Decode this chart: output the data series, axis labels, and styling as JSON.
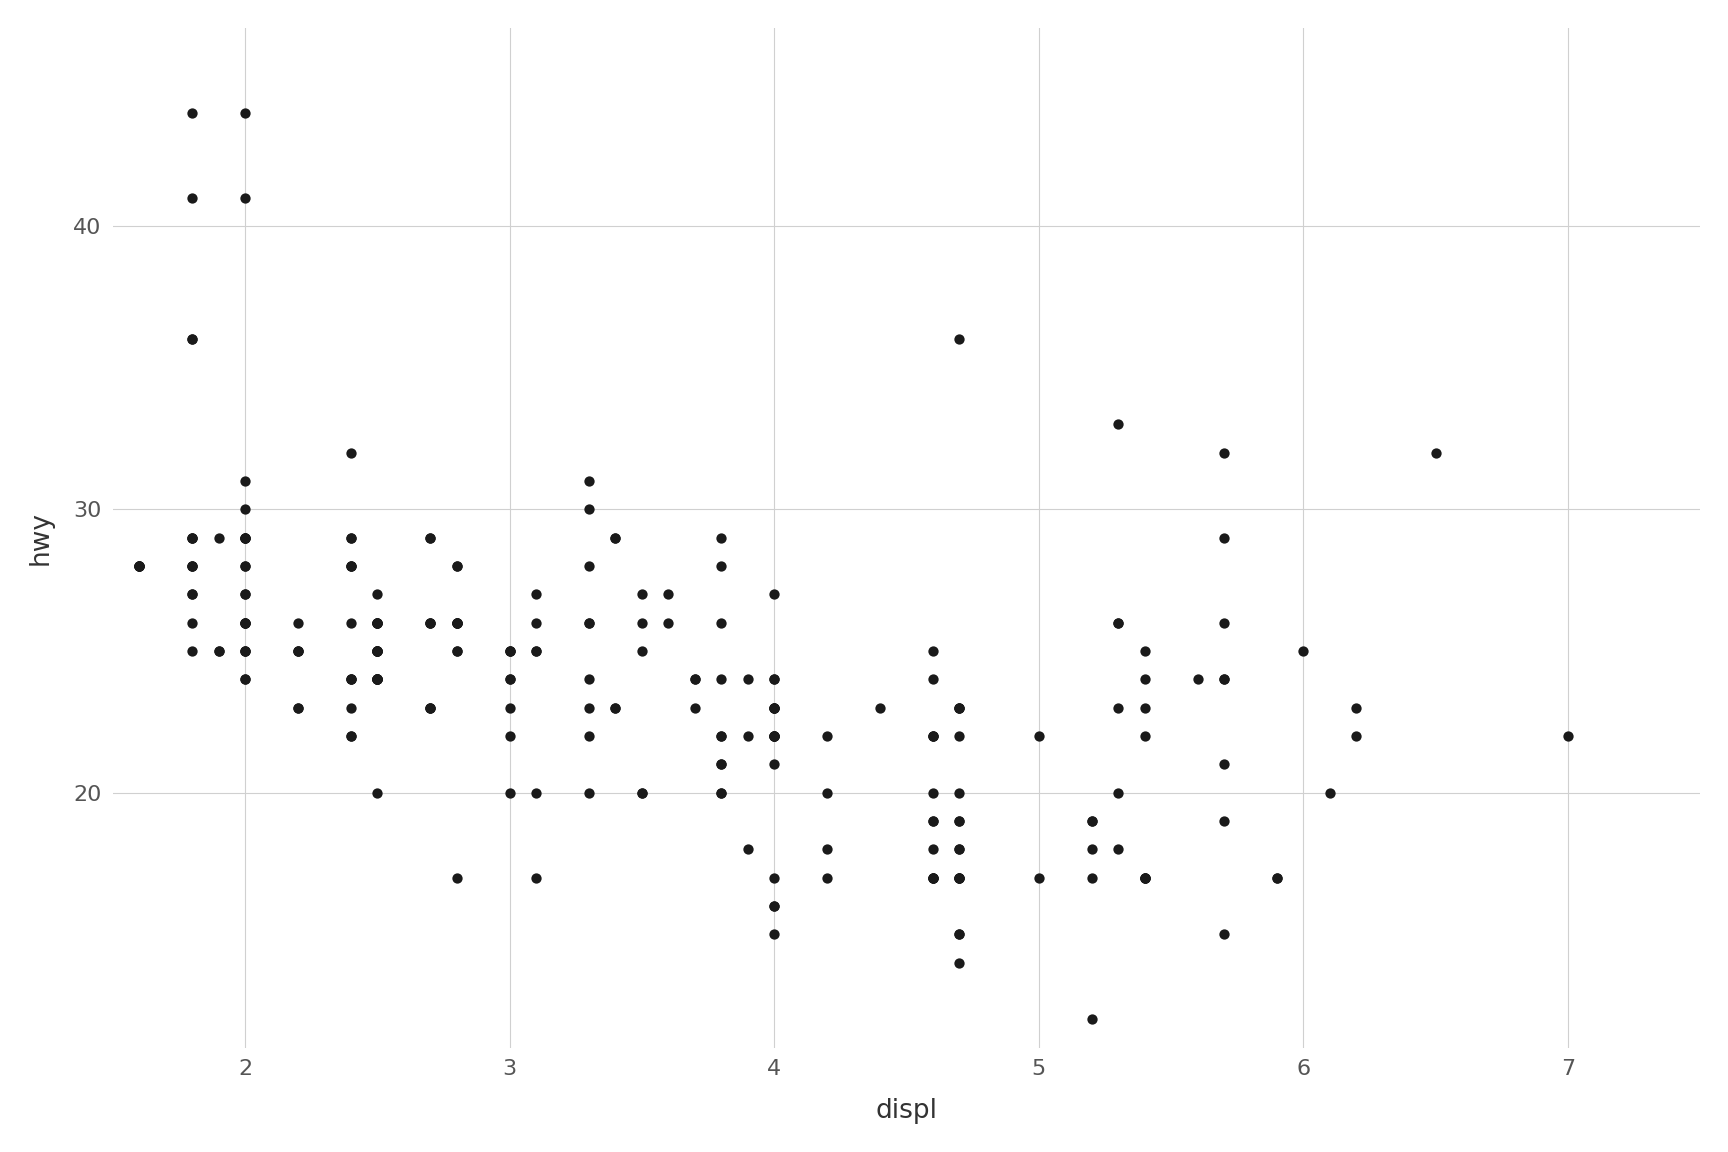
{
  "displ": [
    1.8,
    1.8,
    2.0,
    2.0,
    2.8,
    2.8,
    3.1,
    1.8,
    1.8,
    2.0,
    2.0,
    2.8,
    2.8,
    3.1,
    3.1,
    2.8,
    3.1,
    4.2,
    5.3,
    5.3,
    5.3,
    5.7,
    6.0,
    5.7,
    5.7,
    6.2,
    6.2,
    7.0,
    5.3,
    5.3,
    5.7,
    6.5,
    2.4,
    2.4,
    3.1,
    3.5,
    3.6,
    2.4,
    3.0,
    3.3,
    3.3,
    3.3,
    3.3,
    3.3,
    3.8,
    3.8,
    3.8,
    4.0,
    3.7,
    3.7,
    3.9,
    3.9,
    4.7,
    4.7,
    4.7,
    5.2,
    5.2,
    3.9,
    4.7,
    4.7,
    4.7,
    5.2,
    5.7,
    5.9,
    4.7,
    4.7,
    4.7,
    4.7,
    4.7,
    4.7,
    5.2,
    5.2,
    5.7,
    5.9,
    4.6,
    5.4,
    5.4,
    4.0,
    4.0,
    4.0,
    4.0,
    4.6,
    5.0,
    4.2,
    4.2,
    4.6,
    4.6,
    4.6,
    5.4,
    5.4,
    3.8,
    3.8,
    4.0,
    4.0,
    4.6,
    4.6,
    3.8,
    3.8,
    4.0,
    4.0,
    4.6,
    4.6,
    4.6,
    4.6,
    5.4,
    1.6,
    1.6,
    1.6,
    1.6,
    1.6,
    1.8,
    1.8,
    1.8,
    2.0,
    2.4,
    2.4,
    2.4,
    2.4,
    2.5,
    2.5,
    3.3,
    2.0,
    2.0,
    2.0,
    2.0,
    2.7,
    2.7,
    2.7,
    3.0,
    3.7,
    4.0,
    4.7,
    4.7,
    4.7,
    5.7,
    6.1,
    4.0,
    4.2,
    4.4,
    4.6,
    5.4,
    5.4,
    5.4,
    4.0,
    4.0,
    4.6,
    5.0,
    2.4,
    2.4,
    2.5,
    2.5,
    3.5,
    3.5,
    3.0,
    3.0,
    3.5,
    3.3,
    3.3,
    4.0,
    5.6,
    3.1,
    3.8,
    3.8,
    3.8,
    5.3,
    2.5,
    2.5,
    2.5,
    2.5,
    2.5,
    2.5,
    2.2,
    2.2,
    2.5,
    2.5,
    2.5,
    2.5,
    2.5,
    2.5,
    2.7,
    2.7,
    3.4,
    3.4,
    4.0,
    4.7,
    2.2,
    2.2,
    2.4,
    2.4,
    3.0,
    3.0,
    3.5,
    2.2,
    2.2,
    2.4,
    2.4,
    3.0,
    3.0,
    3.3,
    1.8,
    1.8,
    1.8,
    1.8,
    1.8,
    4.7,
    5.7,
    2.7,
    2.7,
    2.7,
    3.4,
    3.4,
    4.0,
    4.0,
    2.0,
    2.0,
    2.0,
    2.0,
    2.8,
    1.9,
    2.0,
    2.0,
    2.0,
    2.0,
    2.5,
    2.5,
    2.8,
    2.8,
    1.9,
    1.9,
    2.0,
    2.0,
    2.5,
    2.5,
    1.8,
    1.8,
    2.0,
    2.0,
    2.8,
    2.8,
    3.6
  ],
  "hwy": [
    29,
    29,
    31,
    30,
    26,
    26,
    27,
    26,
    25,
    28,
    27,
    25,
    25,
    25,
    25,
    17,
    17,
    20,
    18,
    26,
    26,
    26,
    25,
    24,
    21,
    22,
    23,
    22,
    20,
    33,
    32,
    32,
    29,
    32,
    26,
    27,
    27,
    26,
    24,
    30,
    31,
    26,
    26,
    28,
    26,
    29,
    28,
    27,
    24,
    24,
    24,
    22,
    19,
    20,
    17,
    12,
    19,
    18,
    14,
    15,
    18,
    18,
    15,
    17,
    15,
    17,
    17,
    18,
    17,
    19,
    17,
    19,
    19,
    17,
    17,
    17,
    17,
    16,
    16,
    17,
    15,
    17,
    17,
    18,
    17,
    19,
    17,
    17,
    17,
    17,
    22,
    21,
    23,
    23,
    19,
    18,
    22,
    21,
    22,
    23,
    22,
    20,
    22,
    25,
    25,
    28,
    28,
    28,
    28,
    28,
    28,
    28,
    28,
    26,
    29,
    28,
    28,
    28,
    25,
    25,
    24,
    26,
    25,
    24,
    24,
    23,
    23,
    23,
    22,
    23,
    22,
    23,
    23,
    22,
    24,
    20,
    21,
    22,
    23,
    22,
    23,
    22,
    24,
    22,
    24,
    24,
    22,
    22,
    24,
    24,
    20,
    20,
    25,
    20,
    25,
    20,
    22,
    20,
    22,
    24,
    20,
    20,
    24,
    20,
    23,
    24,
    24,
    24,
    24,
    26,
    25,
    23,
    23,
    25,
    24,
    24,
    25,
    26,
    26,
    26,
    26,
    23,
    23,
    22,
    23,
    25,
    25,
    23,
    24,
    25,
    25,
    26,
    25,
    26,
    24,
    22,
    23,
    24,
    23,
    29,
    44,
    41,
    36,
    36,
    36,
    29,
    26,
    29,
    29,
    29,
    29,
    23,
    24,
    44,
    41,
    29,
    26,
    28,
    29,
    29,
    29,
    28,
    29,
    26,
    26,
    26,
    26,
    25,
    25,
    27,
    25,
    27,
    25,
    27,
    27,
    25,
    26,
    26,
    28,
    26
  ],
  "xlim": [
    1.5,
    7.5
  ],
  "ylim": [
    11,
    47
  ],
  "xlabel": "displ",
  "ylabel": "hwy",
  "xticks": [
    2,
    3,
    4,
    5,
    6,
    7
  ],
  "yticks": [
    20,
    30,
    40
  ],
  "dot_color": "#1a1a1a",
  "dot_size": 55,
  "background_color": "#ffffff",
  "grid_color": "#d0d0d0",
  "axis_label_fontsize": 19,
  "tick_fontsize": 16
}
